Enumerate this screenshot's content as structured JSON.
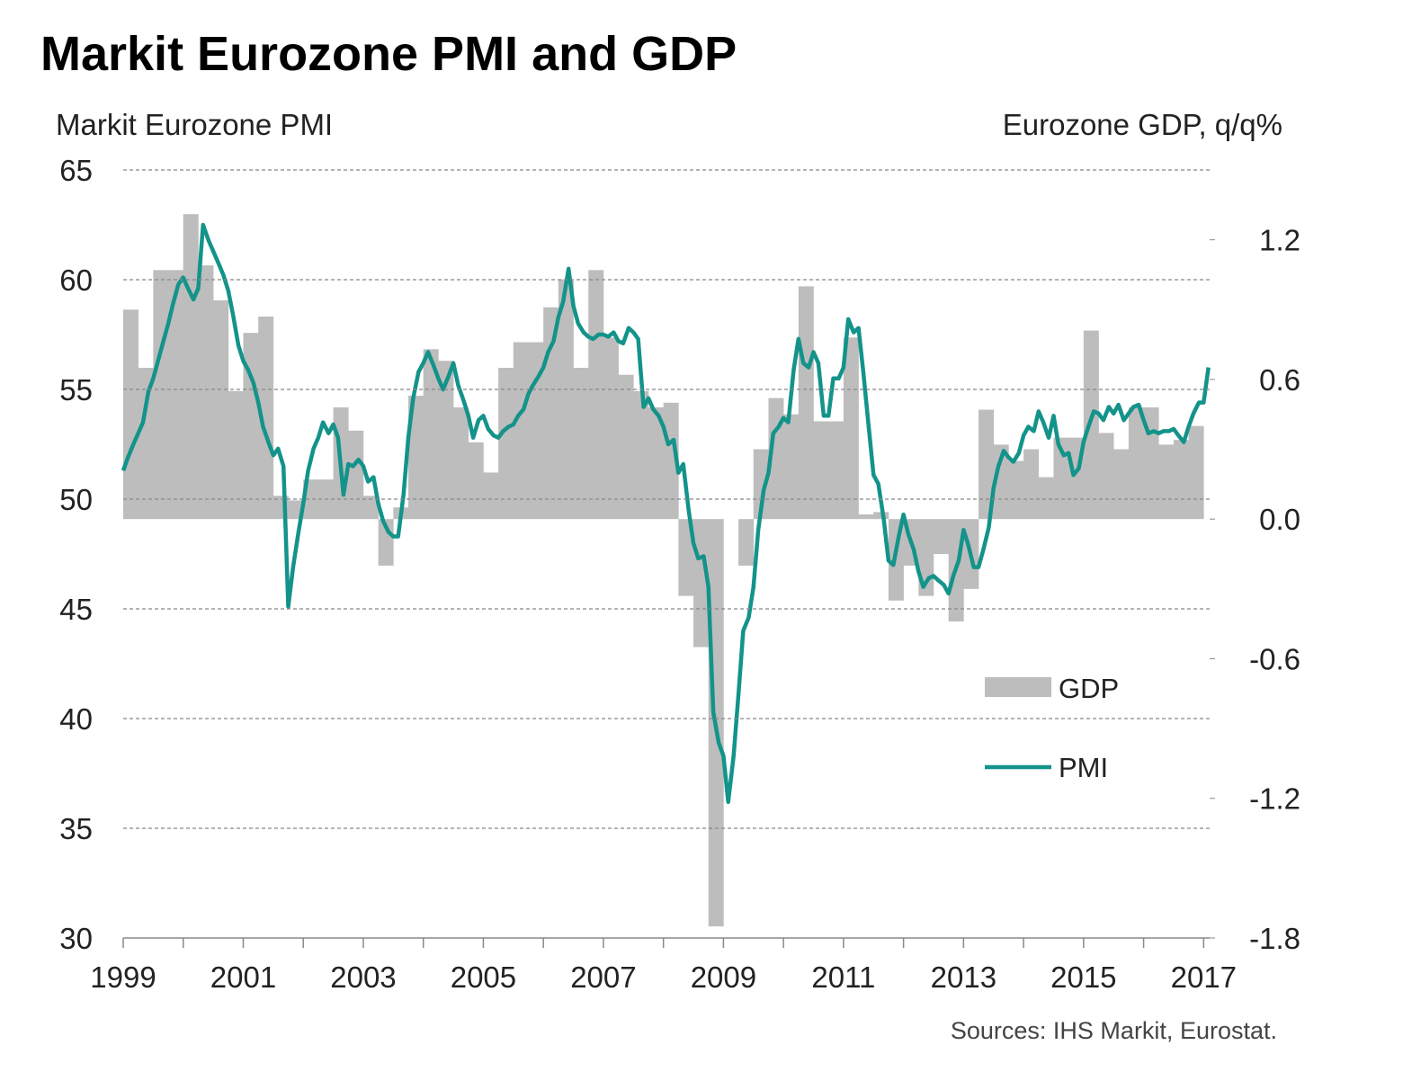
{
  "chart_data": {
    "type": "combo",
    "title": "Markit Eurozone PMI and GDP",
    "ylabel": "Markit Eurozone PMI",
    "y2label": "Eurozone GDP, q/q%",
    "source": "Sources: IHS Markit, Eurostat.",
    "xlim": [
      1999,
      2017.1
    ],
    "xticks": [
      1999,
      2001,
      2003,
      2005,
      2007,
      2009,
      2011,
      2013,
      2015,
      2017
    ],
    "xminor_ticks": [
      2000,
      2002,
      2004,
      2006,
      2008,
      2010,
      2012,
      2014,
      2016
    ],
    "ylim": [
      30,
      65
    ],
    "yticks": [
      30,
      35,
      40,
      45,
      50,
      55,
      60,
      65
    ],
    "y2lim": [
      -1.8,
      1.5
    ],
    "y2ticks": [
      -1.8,
      -1.2,
      -0.6,
      {
        "value": 0,
        "label": "0.0"
      },
      0.6,
      1.2
    ],
    "grid": true,
    "legend": "center right",
    "series": [
      {
        "name": "GDP",
        "type": "bar",
        "axis": "y2",
        "color": "#bdbdbd",
        "x": [
          1999,
          1999.25,
          1999.5,
          1999.75,
          2000,
          2000.25,
          2000.5,
          2000.75,
          2001,
          2001.25,
          2001.5,
          2001.75,
          2002,
          2002.25,
          2002.5,
          2002.75,
          2003,
          2003.25,
          2003.5,
          2003.75,
          2004,
          2004.25,
          2004.5,
          2004.75,
          2005,
          2005.25,
          2005.5,
          2005.75,
          2006,
          2006.25,
          2006.5,
          2006.75,
          2007,
          2007.25,
          2007.5,
          2007.75,
          2008,
          2008.25,
          2008.5,
          2008.75,
          2009,
          2009.25,
          2009.5,
          2009.75,
          2010,
          2010.25,
          2010.5,
          2010.75,
          2011,
          2011.25,
          2011.5,
          2011.75,
          2012,
          2012.25,
          2012.5,
          2012.75,
          2013,
          2013.25,
          2013.5,
          2013.75,
          2014,
          2014.25,
          2014.5,
          2014.75,
          2015,
          2015.25,
          2015.5,
          2015.75,
          2016,
          2016.25,
          2016.5,
          2016.75
        ],
        "values": [
          0.9,
          0.65,
          1.07,
          1.07,
          1.31,
          1.09,
          0.94,
          0.55,
          0.8,
          0.87,
          0.1,
          0.08,
          0.17,
          0.17,
          0.48,
          0.38,
          0.1,
          -0.2,
          0.05,
          0.53,
          0.73,
          0.68,
          0.48,
          0.33,
          0.2,
          0.65,
          0.76,
          0.76,
          0.91,
          1.03,
          0.65,
          1.07,
          0.78,
          0.62,
          0.55,
          0.48,
          0.5,
          -0.33,
          -0.55,
          -1.75,
          null,
          -0.2,
          0.3,
          0.52,
          0.45,
          1.0,
          0.42,
          0.42,
          0.78,
          0.02,
          0.03,
          -0.35,
          -0.2,
          -0.33,
          -0.15,
          -0.44,
          -0.3,
          0.47,
          0.32,
          0.25,
          0.3,
          0.18,
          0.35,
          0.35,
          0.81,
          0.37,
          0.3,
          0.48,
          0.48,
          0.32,
          0.34,
          0.4
        ]
      },
      {
        "name": "PMI",
        "type": "line",
        "color": "#13938a",
        "x": [
          1999,
          1999.08,
          1999.17,
          1999.25,
          1999.33,
          1999.42,
          1999.5,
          1999.58,
          1999.67,
          1999.75,
          1999.83,
          1999.92,
          2000,
          2000.08,
          2000.17,
          2000.25,
          2000.33,
          2000.42,
          2000.5,
          2000.58,
          2000.67,
          2000.75,
          2000.83,
          2000.92,
          2001,
          2001.08,
          2001.17,
          2001.25,
          2001.33,
          2001.42,
          2001.5,
          2001.58,
          2001.67,
          2001.75,
          2001.83,
          2001.92,
          2002,
          2002.08,
          2002.17,
          2002.25,
          2002.33,
          2002.42,
          2002.5,
          2002.58,
          2002.67,
          2002.75,
          2002.83,
          2002.92,
          2003,
          2003.08,
          2003.17,
          2003.25,
          2003.33,
          2003.42,
          2003.5,
          2003.58,
          2003.67,
          2003.75,
          2003.83,
          2003.92,
          2004,
          2004.08,
          2004.17,
          2004.25,
          2004.33,
          2004.42,
          2004.5,
          2004.58,
          2004.67,
          2004.75,
          2004.83,
          2004.92,
          2005,
          2005.08,
          2005.17,
          2005.25,
          2005.33,
          2005.42,
          2005.5,
          2005.58,
          2005.67,
          2005.75,
          2005.83,
          2005.92,
          2006,
          2006.08,
          2006.17,
          2006.25,
          2006.33,
          2006.42,
          2006.5,
          2006.58,
          2006.67,
          2006.75,
          2006.83,
          2006.92,
          2007,
          2007.08,
          2007.17,
          2007.25,
          2007.33,
          2007.42,
          2007.5,
          2007.58,
          2007.67,
          2007.75,
          2007.83,
          2007.92,
          2008,
          2008.08,
          2008.17,
          2008.25,
          2008.33,
          2008.42,
          2008.5,
          2008.58,
          2008.67,
          2008.75,
          2008.83,
          2008.92,
          2009,
          2009.08,
          2009.17,
          2009.25,
          2009.33,
          2009.42,
          2009.5,
          2009.58,
          2009.67,
          2009.75,
          2009.83,
          2009.92,
          2010,
          2010.08,
          2010.17,
          2010.25,
          2010.33,
          2010.42,
          2010.5,
          2010.58,
          2010.67,
          2010.75,
          2010.83,
          2010.92,
          2011,
          2011.08,
          2011.17,
          2011.25,
          2011.33,
          2011.42,
          2011.5,
          2011.58,
          2011.67,
          2011.75,
          2011.83,
          2011.92,
          2012,
          2012.08,
          2012.17,
          2012.25,
          2012.33,
          2012.42,
          2012.5,
          2012.58,
          2012.67,
          2012.75,
          2012.83,
          2012.92,
          2013,
          2013.08,
          2013.17,
          2013.25,
          2013.33,
          2013.42,
          2013.5,
          2013.58,
          2013.67,
          2013.75,
          2013.83,
          2013.92,
          2014,
          2014.08,
          2014.17,
          2014.25,
          2014.33,
          2014.42,
          2014.5,
          2014.58,
          2014.67,
          2014.75,
          2014.83,
          2014.92,
          2015,
          2015.08,
          2015.17,
          2015.25,
          2015.33,
          2015.42,
          2015.5,
          2015.58,
          2015.67,
          2015.75,
          2015.83,
          2015.92,
          2016,
          2016.08,
          2016.17,
          2016.25,
          2016.33,
          2016.42,
          2016.5,
          2016.58,
          2016.67,
          2016.75,
          2016.83,
          2016.92,
          2017,
          2017.08
        ],
        "values": [
          51.3,
          51.9,
          52.5,
          53.0,
          53.5,
          54.9,
          55.5,
          56.3,
          57.2,
          58.0,
          58.9,
          59.8,
          60.1,
          59.6,
          59.1,
          59.6,
          62.5,
          61.8,
          61.3,
          60.8,
          60.2,
          59.5,
          58.4,
          57.0,
          56.3,
          55.9,
          55.3,
          54.4,
          53.3,
          52.6,
          52.0,
          52.3,
          51.5,
          45.1,
          46.9,
          48.5,
          49.8,
          51.3,
          52.3,
          52.8,
          53.5,
          53.0,
          53.4,
          52.8,
          50.2,
          51.6,
          51.5,
          51.8,
          51.5,
          50.8,
          51.0,
          49.8,
          49.0,
          48.5,
          48.3,
          48.3,
          50.2,
          52.8,
          54.6,
          55.8,
          56.2,
          56.7,
          56.1,
          55.5,
          55.0,
          55.6,
          56.2,
          55.2,
          54.5,
          53.8,
          52.8,
          53.6,
          53.8,
          53.2,
          52.9,
          52.8,
          53.1,
          53.3,
          53.4,
          53.8,
          54.1,
          54.8,
          55.2,
          55.6,
          56.0,
          56.7,
          57.2,
          58.3,
          59.0,
          60.5,
          58.8,
          58.0,
          57.6,
          57.4,
          57.3,
          57.5,
          57.5,
          57.4,
          57.6,
          57.2,
          57.1,
          57.8,
          57.6,
          57.3,
          54.2,
          54.6,
          54.1,
          53.8,
          53.3,
          52.5,
          52.7,
          51.2,
          51.6,
          49.5,
          48.0,
          47.3,
          47.4,
          46.0,
          40.3,
          38.9,
          38.3,
          36.2,
          38.3,
          41.1,
          44.0,
          44.6,
          46.0,
          48.6,
          50.4,
          51.2,
          53.0,
          53.3,
          53.7,
          53.5,
          55.9,
          57.3,
          56.2,
          56.0,
          56.7,
          56.2,
          53.8,
          53.8,
          55.5,
          55.5,
          56.0,
          58.2,
          57.6,
          57.8,
          55.8,
          53.3,
          51.1,
          50.7,
          49.1,
          47.2,
          47.0,
          48.3,
          49.3,
          48.4,
          47.7,
          46.7,
          46.0,
          46.4,
          46.5,
          46.3,
          46.1,
          45.7,
          46.5,
          47.2,
          48.6,
          47.9,
          46.9,
          46.9,
          47.7,
          48.7,
          50.5,
          51.5,
          52.2,
          51.9,
          51.7,
          52.1,
          52.9,
          53.3,
          53.1,
          54.0,
          53.5,
          52.8,
          53.8,
          52.5,
          52.0,
          52.1,
          51.1,
          51.4,
          52.6,
          53.3,
          54.0,
          53.9,
          53.6,
          54.2,
          53.9,
          54.3,
          53.6,
          53.9,
          54.2,
          54.3,
          53.6,
          53.0,
          53.1,
          53.0,
          53.1,
          53.1,
          53.2,
          52.9,
          52.6,
          53.3,
          53.9,
          54.4,
          54.4,
          56.0
        ]
      }
    ]
  }
}
